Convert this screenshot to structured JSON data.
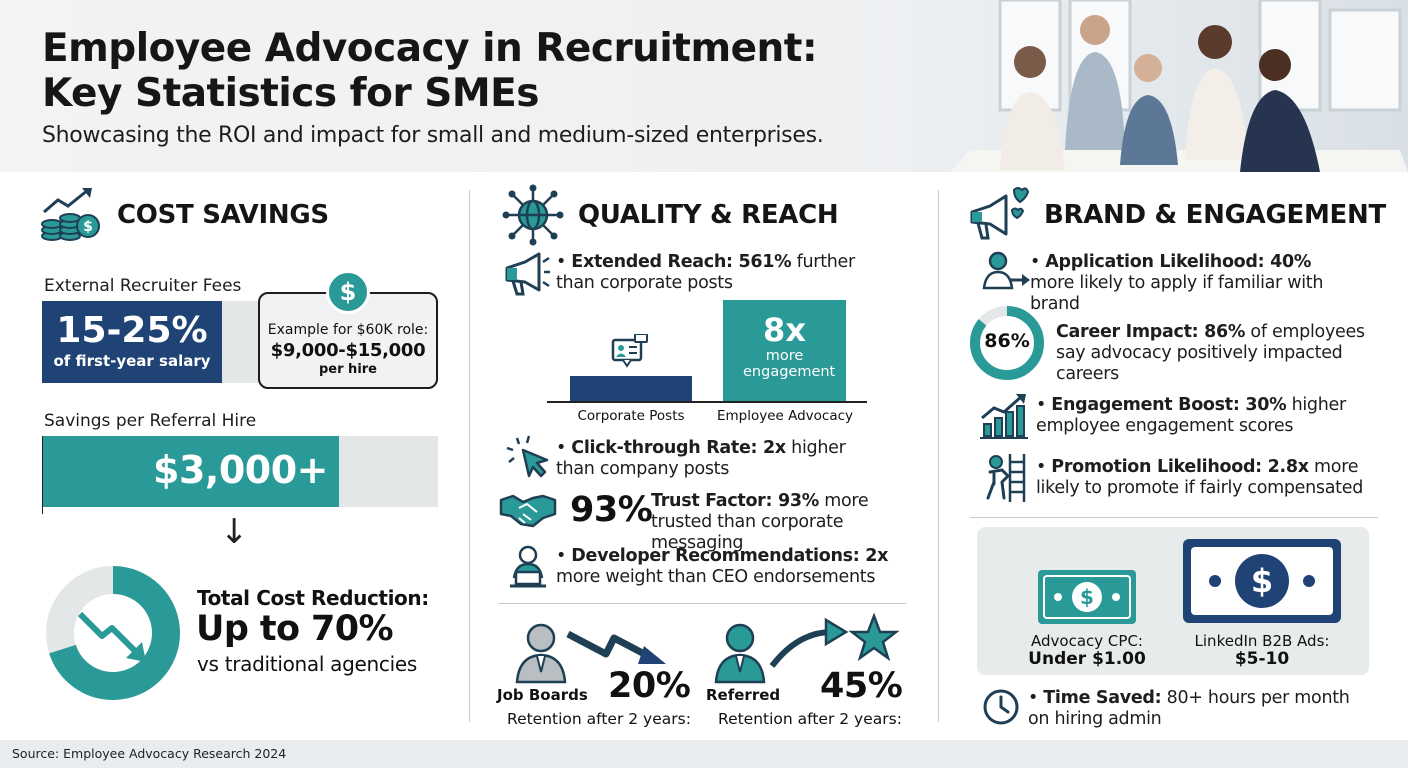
{
  "header": {
    "title_line1": "Employee Advocacy in Recruitment:",
    "title_line2": "Key Statistics for SMEs",
    "subtitle": "Showcasing the ROI and impact for small and medium-sized enterprises."
  },
  "cost_savings": {
    "title": "COST SAVINGS",
    "recruiter_fees_label": "External Recruiter Fees",
    "fee_range": "15-25%",
    "fee_caption": "of first-year salary",
    "example_label": "Example for $60K role:",
    "example_value": "$9,000-$15,000",
    "example_unit": "per hire",
    "referral_label": "Savings per Referral Hire",
    "referral_value": "$3,000+",
    "referral_fill_fraction": 0.75,
    "arrow": "↓",
    "total_title": "Total Cost Reduction:",
    "total_value": "Up to 70%",
    "total_caption": "vs traditional agencies",
    "total_fraction": 0.7
  },
  "quality_reach": {
    "title": "QUALITY & REACH",
    "extended_reach": {
      "bold": "Extended Reach: 561%",
      "rest": " further than corporate posts"
    },
    "bar_chart": {
      "corporate_label": "Corporate Posts",
      "advocacy_label": "Employee Advocacy",
      "advocacy_big": "8x",
      "advocacy_small": "more engagement",
      "corporate_value": 1,
      "advocacy_value": 8
    },
    "click_through": {
      "bold": "Click-through Rate: 2x",
      "rest": " higher than company posts"
    },
    "trust": {
      "big": "93%",
      "bold": "Trust Factor: 93%",
      "rest": " more trusted than corporate messaging"
    },
    "developer": {
      "bold": "Developer Recommendations: 2x",
      "rest": " more weight than CEO endorsements"
    },
    "retention": {
      "job_boards_label": "Job Boards",
      "job_boards_value": "20%",
      "referred_label": "Referred",
      "referred_value": "45%",
      "caption": "Retention after 2 years:"
    }
  },
  "brand_engagement": {
    "title": "BRAND & ENGAGEMENT",
    "application": {
      "bold": "Application Likelihood: 40%",
      "rest": " more likely to apply if familiar with brand"
    },
    "career": {
      "ring": "86%",
      "bold": "Career Impact: 86%",
      "rest": " of employees say advocacy positively impacted careers",
      "fraction": 0.86
    },
    "engagement": {
      "bold": "Engagement Boost: 30%",
      "rest": " higher employee engagement scores"
    },
    "promotion": {
      "bold": "Promotion Likelihood: 2.8x",
      "rest": " more likely to promote if fairly compensated"
    },
    "cpc": {
      "label": "Advocacy CPC:",
      "value": "Under $1.00"
    },
    "linkedin": {
      "label": "LinkedIn B2B Ads:",
      "value": "$5-10"
    },
    "time_saved": {
      "bold": "Time Saved:",
      "rest": " 80+ hours per month on hiring admin"
    }
  },
  "footer": {
    "source": "Source: Employee Advocacy Research 2024"
  },
  "colors": {
    "navy": "#1f4374",
    "teal": "#2a9a98",
    "light_gray": "#e4e7e8"
  }
}
